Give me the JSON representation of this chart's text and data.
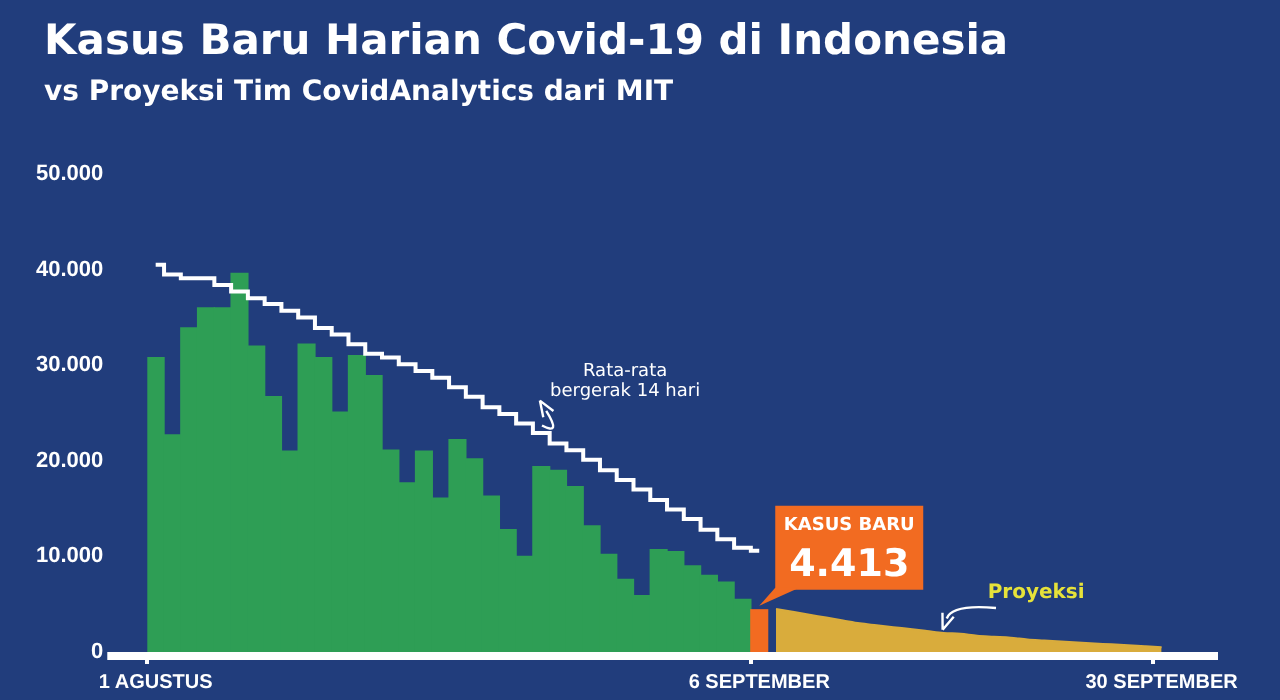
{
  "chart_data": {
    "type": "bar",
    "title": "Kasus Baru Harian Covid-19 di Indonesia",
    "subtitle": "vs Proyeksi Tim CovidAnalytics dari MIT",
    "categories": [
      "1 AGUSTUS",
      null,
      null,
      null,
      null,
      null,
      null,
      null,
      null,
      null,
      null,
      null,
      null,
      null,
      null,
      null,
      null,
      null,
      null,
      null,
      null,
      null,
      null,
      null,
      null,
      null,
      null,
      null,
      null,
      null,
      null,
      null,
      null,
      null,
      null,
      null,
      "6 SEPTEMBER",
      null,
      null,
      null,
      null,
      null,
      null,
      null,
      null,
      null,
      null,
      null,
      null,
      null,
      null,
      null,
      null,
      null,
      null,
      null,
      null,
      null,
      null,
      null,
      "30 SEPTEMBER"
    ],
    "series": [
      {
        "colors": [
          "#2e9e55",
          "#2e9e55",
          "#2e9e55",
          "#2e9e55",
          "#2e9e55",
          "#2e9e55",
          "#2e9e55",
          "#2e9e55",
          "#2e9e55",
          "#2e9e55",
          "#2e9e55",
          "#2e9e55",
          "#2e9e55",
          "#2e9e55",
          "#2e9e55",
          "#2e9e55",
          "#2e9e55",
          "#2e9e55",
          "#2e9e55",
          "#2e9e55",
          "#2e9e55",
          "#2e9e55",
          "#2e9e55",
          "#2e9e55",
          "#2e9e55",
          "#2e9e55",
          "#2e9e55",
          "#2e9e55",
          "#2e9e55",
          "#2e9e55",
          "#2e9e55",
          "#2e9e55",
          "#2e9e55",
          "#2e9e55",
          "#2e9e55",
          "#2e9e55",
          "#f26b21",
          null,
          null,
          null,
          null,
          null,
          null,
          null,
          null,
          null,
          null,
          null,
          null,
          null,
          null,
          null,
          null,
          null,
          null,
          null,
          null,
          null,
          null,
          null,
          null
        ],
        "values": [
          30800,
          22700,
          33900,
          36000,
          36000,
          39600,
          32000,
          26700,
          21000,
          32200,
          30800,
          25100,
          31000,
          28900,
          21100,
          17700,
          21000,
          16100,
          22200,
          20200,
          16300,
          12800,
          10000,
          19400,
          19000,
          17300,
          13200,
          10200,
          7600,
          5900,
          10700,
          10500,
          9000,
          8000,
          7300,
          5500,
          4413,
          null,
          null,
          null,
          null,
          null,
          null,
          null,
          null,
          null,
          null,
          null,
          null,
          null,
          null,
          null,
          null,
          null,
          null,
          null,
          null,
          null,
          null,
          null,
          null
        ],
        "value_labels": [
          null,
          null,
          null,
          null,
          null,
          null,
          null,
          null,
          null,
          null,
          null,
          null,
          null,
          null,
          null,
          null,
          null,
          null,
          null,
          null,
          null,
          null,
          null,
          null,
          null,
          null,
          null,
          null,
          null,
          null,
          null,
          null,
          null,
          null,
          null,
          null,
          "4.413",
          null,
          null,
          null,
          null,
          null,
          null,
          null,
          null,
          null,
          null,
          null,
          null,
          null,
          null,
          null,
          null,
          null,
          null,
          null,
          null,
          null,
          null,
          null,
          null
        ]
      },
      {
        "type": "step",
        "name": "Rata-rata bergerak 14 hari",
        "color": "#ffffff",
        "values": [
          40500,
          39500,
          39100,
          39100,
          38400,
          37700,
          37000,
          36400,
          35700,
          35000,
          33900,
          33200,
          32200,
          31200,
          30800,
          30100,
          29400,
          28700,
          27700,
          26700,
          25600,
          24900,
          23900,
          22900,
          21800,
          21100,
          20100,
          19000,
          18000,
          17000,
          15900,
          14900,
          13900,
          12800,
          11800,
          10900,
          10600,
          null,
          null,
          null,
          null,
          null,
          null,
          null,
          null,
          null,
          null,
          null,
          null,
          null,
          null,
          null,
          null,
          null,
          null,
          null,
          null,
          null,
          null,
          null,
          null
        ]
      },
      {
        "type": "area",
        "name": "Proyeksi",
        "color": "#d9ac3c",
        "values": [
          null,
          null,
          null,
          null,
          null,
          null,
          null,
          null,
          null,
          null,
          null,
          null,
          null,
          null,
          null,
          null,
          null,
          null,
          null,
          null,
          null,
          null,
          null,
          null,
          null,
          null,
          null,
          null,
          null,
          null,
          null,
          null,
          null,
          null,
          null,
          null,
          null,
          4500,
          4200,
          3900,
          3600,
          3300,
          3000,
          2800,
          2600,
          2400,
          2200,
          2000,
          1900,
          1700,
          1600,
          1500,
          1300,
          1200,
          1100,
          1000,
          900,
          800,
          700,
          600,
          500
        ]
      }
    ],
    "annotations": [
      "KASUS BARU"
    ],
    "ylim": [
      0,
      50000
    ],
    "yticks": [
      {
        "value": 0,
        "label": "0"
      },
      {
        "value": 10000,
        "label": "10.000"
      },
      {
        "value": 20000,
        "label": "20.000"
      },
      {
        "value": 30000,
        "label": "30.000"
      },
      {
        "value": 40000,
        "label": "40.000"
      },
      {
        "value": 50000,
        "label": "50.000"
      }
    ],
    "grid": false,
    "legend": false
  }
}
